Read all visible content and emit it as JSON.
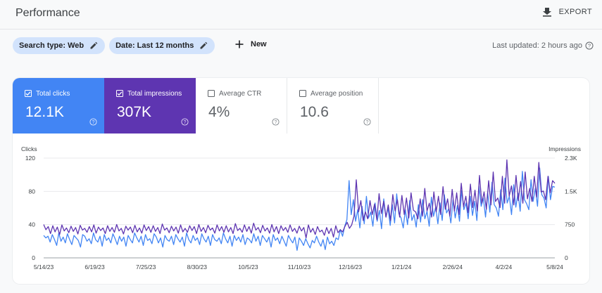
{
  "header": {
    "title": "Performance",
    "export_label": "EXPORT"
  },
  "filters": {
    "search_type": "Search type: Web",
    "date": "Date: Last 12 months",
    "new_label": "New"
  },
  "last_updated": "Last updated: 2 hours ago",
  "metrics": [
    {
      "label": "Total clicks",
      "value": "12.1K",
      "checked": true,
      "color": "#4285f4"
    },
    {
      "label": "Total impressions",
      "value": "307K",
      "checked": true,
      "color": "#5e35b1"
    },
    {
      "label": "Average CTR",
      "value": "4%",
      "checked": false
    },
    {
      "label": "Average position",
      "value": "10.6",
      "checked": false
    }
  ],
  "chart_data": {
    "type": "line",
    "left_axis": {
      "label": "Clicks",
      "ticks": [
        "0",
        "40",
        "80",
        "120"
      ],
      "range": [
        0,
        120
      ]
    },
    "right_axis": {
      "label": "Impressions",
      "ticks": [
        "0",
        "750",
        "1.5K",
        "2.3K"
      ],
      "range": [
        0,
        2300
      ]
    },
    "x_ticks": [
      "5/14/23",
      "6/19/23",
      "7/25/23",
      "8/30/23",
      "10/5/23",
      "11/10/23",
      "12/16/23",
      "1/21/24",
      "2/26/24",
      "4/2/24",
      "5/8/24"
    ],
    "grid": true,
    "series": [
      {
        "color": "#4285f4",
        "axis": "left",
        "values": [
          27,
          24,
          26,
          19,
          28,
          22,
          15,
          30,
          20,
          25,
          18,
          29,
          22,
          16,
          27,
          24,
          21,
          13,
          28,
          26,
          20,
          23,
          17,
          30,
          22,
          19,
          26,
          14,
          28,
          21,
          24,
          18,
          29,
          23,
          16,
          26,
          20,
          25,
          14,
          27,
          22,
          18,
          30,
          24,
          19,
          26,
          15,
          28,
          21,
          23,
          17,
          29,
          25,
          18,
          24,
          13,
          27,
          22,
          20,
          26,
          16,
          28,
          23,
          19,
          25,
          14,
          30,
          22,
          18,
          27,
          21,
          24,
          16,
          29,
          23,
          19,
          26,
          15,
          28,
          22,
          20,
          24,
          17,
          30,
          23,
          18,
          26,
          14,
          27,
          21,
          25,
          19,
          28,
          16,
          24,
          22,
          18,
          29,
          20,
          26,
          15,
          27,
          23,
          19,
          25,
          13,
          28,
          21,
          24,
          17,
          26,
          20,
          14,
          27,
          22,
          18,
          25,
          9,
          24,
          20,
          15,
          23,
          17,
          12,
          21,
          18,
          26,
          19,
          14,
          22,
          10,
          25,
          17,
          20,
          15,
          24,
          22,
          34,
          26,
          38,
          46,
          93,
          52,
          70,
          44,
          58,
          36,
          62,
          41,
          74,
          48,
          55,
          38,
          66,
          44,
          57,
          35,
          71,
          49,
          60,
          39,
          64,
          42,
          77,
          53,
          48,
          36,
          58,
          40,
          69,
          45,
          52,
          37,
          64,
          43,
          70,
          47,
          56,
          38,
          73,
          50,
          61,
          41,
          66,
          45,
          76,
          54,
          59,
          42,
          70,
          48,
          63,
          44,
          81,
          58,
          66,
          47,
          74,
          51,
          68,
          45,
          86,
          62,
          72,
          49,
          79,
          55,
          91,
          64,
          60,
          50,
          82,
          58,
          96,
          66,
          74,
          52,
          88,
          61,
          78,
          56,
          104,
          70,
          65,
          58,
          94,
          68,
          84,
          62,
          108,
          76,
          72,
          60,
          98,
          70,
          86,
          85
        ]
      },
      {
        "color": "#5e35b1",
        "axis": "right",
        "values": [
          770,
          650,
          720,
          560,
          740,
          600,
          710,
          540,
          760,
          620,
          690,
          580,
          730,
          610,
          700,
          550,
          750,
          640,
          680,
          590,
          720,
          600,
          760,
          570,
          710,
          630,
          690,
          560,
          740,
          610,
          700,
          590,
          770,
          620,
          680,
          550,
          730,
          640,
          710,
          580,
          750,
          600,
          690,
          570,
          760,
          630,
          720,
          590,
          740,
          610,
          700,
          560,
          780,
          640,
          690,
          580,
          730,
          620,
          710,
          570,
          760,
          600,
          680,
          590,
          740,
          630,
          720,
          560,
          770,
          610,
          700,
          580,
          750,
          640,
          690,
          570,
          760,
          620,
          720,
          590,
          740,
          600,
          700,
          560,
          790,
          630,
          680,
          590,
          760,
          610,
          720,
          570,
          800,
          640,
          700,
          580,
          750,
          620,
          690,
          570,
          770,
          600,
          720,
          560,
          740,
          630,
          700,
          590,
          760,
          610,
          680,
          570,
          730,
          620,
          700,
          460,
          760,
          590,
          680,
          540,
          720,
          600,
          640,
          520,
          700,
          560,
          680,
          480,
          740,
          580,
          650,
          600,
          720,
          820,
          680,
          760,
          960,
          1800,
          1060,
          1320,
          860,
          1060,
          900,
          1320,
          1000,
          1240,
          880,
          1480,
          1020,
          1300,
          940,
          1220,
          860,
          1460,
          1080,
          1340,
          940,
          1440,
          1000,
          1380,
          920,
          1500,
          1100,
          1060,
          900,
          1360,
          960,
          1600,
          1080,
          1260,
          940,
          1520,
          1060,
          1420,
          1000,
          1640,
          1120,
          1360,
          960,
          1580,
          1080,
          1500,
          1000,
          1720,
          1180,
          1420,
          1040,
          1700,
          1160,
          1560,
          1080,
          1900,
          1260,
          1520,
          1120,
          1780,
          1220,
          1980,
          1300,
          1380,
          1160,
          1880,
          1260,
          2260,
          1420,
          1660,
          1220,
          1900,
          1320,
          1760,
          1260,
          1980,
          1360,
          1600,
          1300,
          1880,
          1400,
          2200,
          1520,
          1540,
          1340,
          1880,
          1500,
          1780,
          1720
        ]
      }
    ]
  }
}
